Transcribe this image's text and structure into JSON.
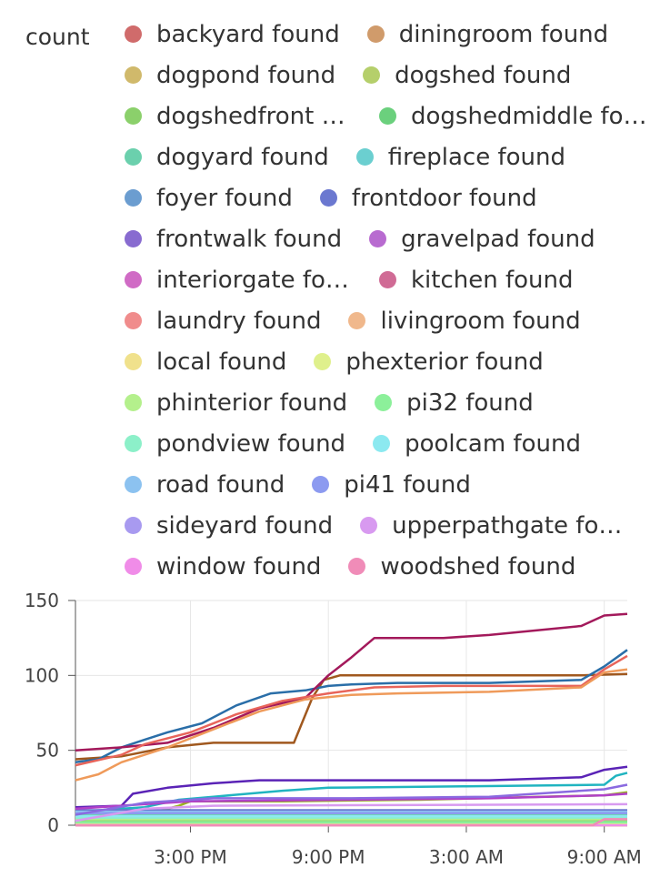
{
  "chart_data": {
    "type": "line",
    "ylabel": "count",
    "ylim": [
      0,
      150
    ],
    "yticks": [
      0,
      50,
      100,
      150
    ],
    "xticks": [
      "3:00 PM",
      "9:00 PM",
      "3:00 AM",
      "9:00 AM"
    ],
    "xlim_hours": [
      10,
      34
    ],
    "legend": "top",
    "grid": true,
    "series": [
      {
        "name": "backyard found",
        "color": "#d06b6b",
        "values": [
          [
            10,
            0
          ],
          [
            34,
            0
          ]
        ]
      },
      {
        "name": "diningroom found",
        "color": "#d09b6b",
        "values": [
          [
            10,
            44
          ],
          [
            12,
            46
          ],
          [
            14,
            52
          ],
          [
            16,
            55
          ],
          [
            18,
            55
          ],
          [
            19.5,
            55
          ],
          [
            20.3,
            85
          ],
          [
            20.8,
            97
          ],
          [
            21.5,
            100
          ],
          [
            26,
            100
          ],
          [
            32,
            100
          ],
          [
            34,
            101
          ]
        ]
      },
      {
        "name": "dogpond found",
        "color": "#d0b96b",
        "values": [
          [
            10,
            1
          ],
          [
            34,
            1
          ]
        ]
      },
      {
        "name": "dogshed found",
        "color": "#b5cf6b",
        "values": [
          [
            10,
            5
          ],
          [
            11.5,
            6
          ],
          [
            13.5,
            9
          ],
          [
            14.5,
            13
          ],
          [
            15,
            16
          ],
          [
            19,
            16
          ],
          [
            25,
            17
          ],
          [
            33,
            20
          ],
          [
            34,
            22
          ]
        ]
      },
      {
        "name": "dogshedfront found",
        "color": "#8bd06b",
        "values": [
          [
            10,
            3
          ],
          [
            34,
            3
          ]
        ]
      },
      {
        "name": "dogshedmiddle found",
        "color": "#6bd07d",
        "values": [
          [
            10,
            8
          ],
          [
            34,
            8
          ]
        ]
      },
      {
        "name": "dogyard found",
        "color": "#6bd0ad",
        "values": [
          [
            10,
            7
          ],
          [
            34,
            7
          ]
        ]
      },
      {
        "name": "fireplace found",
        "color": "#6bcfd0",
        "values": [
          [
            10,
            9
          ],
          [
            13,
            12
          ],
          [
            14.5,
            17
          ],
          [
            16,
            19
          ],
          [
            19,
            23
          ],
          [
            21,
            25
          ],
          [
            27,
            26
          ],
          [
            33,
            27
          ],
          [
            33.5,
            33
          ],
          [
            34,
            35
          ]
        ]
      },
      {
        "name": "foyer found",
        "color": "#6b9dd0",
        "values": [
          [
            10,
            42
          ],
          [
            11,
            44
          ],
          [
            12,
            52
          ],
          [
            13,
            57
          ],
          [
            14,
            62
          ],
          [
            15.5,
            68
          ],
          [
            17,
            80
          ],
          [
            18.5,
            88
          ],
          [
            20,
            90
          ],
          [
            21,
            93
          ],
          [
            22,
            94
          ],
          [
            24,
            95
          ],
          [
            28,
            95
          ],
          [
            32,
            97
          ],
          [
            33,
            106
          ],
          [
            34,
            117
          ]
        ]
      },
      {
        "name": "frontdoor found",
        "color": "#6b78d0",
        "values": [
          [
            10,
            10
          ],
          [
            34,
            10
          ]
        ]
      },
      {
        "name": "frontwalk found",
        "color": "#886bd0",
        "values": [
          [
            10,
            12
          ],
          [
            12,
            13
          ],
          [
            12.5,
            21
          ],
          [
            14,
            25
          ],
          [
            16,
            28
          ],
          [
            18,
            30
          ],
          [
            22,
            30
          ],
          [
            28,
            30
          ],
          [
            32,
            32
          ],
          [
            33,
            37
          ],
          [
            34,
            39
          ]
        ]
      },
      {
        "name": "gravelpad found",
        "color": "#b86bd0",
        "values": [
          [
            10,
            11
          ],
          [
            13,
            14
          ],
          [
            15,
            16
          ],
          [
            22,
            17
          ],
          [
            28,
            18
          ],
          [
            33,
            20
          ],
          [
            34,
            21
          ]
        ]
      },
      {
        "name": "interiorgate found",
        "color": "#d06bc5",
        "values": [
          [
            10,
            2
          ],
          [
            34,
            2
          ]
        ]
      },
      {
        "name": "kitchen found",
        "color": "#d06b95",
        "values": [
          [
            10,
            50
          ],
          [
            12,
            52
          ],
          [
            14,
            55
          ],
          [
            16,
            65
          ],
          [
            18,
            78
          ],
          [
            20,
            85
          ],
          [
            21,
            100
          ],
          [
            22,
            112
          ],
          [
            23,
            125
          ],
          [
            26,
            125
          ],
          [
            28,
            127
          ],
          [
            32,
            133
          ],
          [
            33,
            140
          ],
          [
            34,
            141
          ]
        ]
      },
      {
        "name": "laundry found",
        "color": "#f08c8c",
        "values": [
          [
            10,
            40
          ],
          [
            12,
            47
          ],
          [
            13,
            54
          ],
          [
            15,
            62
          ],
          [
            17,
            74
          ],
          [
            19,
            83
          ],
          [
            21,
            88
          ],
          [
            23,
            92
          ],
          [
            26,
            93
          ],
          [
            32,
            93
          ],
          [
            33,
            104
          ],
          [
            34,
            113
          ]
        ]
      },
      {
        "name": "livingroom found",
        "color": "#f0b88c",
        "values": [
          [
            10,
            30
          ],
          [
            11,
            34
          ],
          [
            12,
            42
          ],
          [
            14,
            52
          ],
          [
            16,
            64
          ],
          [
            18,
            76
          ],
          [
            20,
            84
          ],
          [
            22,
            87
          ],
          [
            24,
            88
          ],
          [
            28,
            89
          ],
          [
            32,
            92
          ],
          [
            33,
            102
          ],
          [
            34,
            104
          ]
        ]
      },
      {
        "name": "local found",
        "color": "#f0e18c",
        "values": [
          [
            10,
            0
          ],
          [
            34,
            0
          ]
        ]
      },
      {
        "name": "phexterior found",
        "color": "#dff08c",
        "values": [
          [
            10,
            1
          ],
          [
            34,
            1
          ]
        ]
      },
      {
        "name": "phinterior found",
        "color": "#b4f08c",
        "values": [
          [
            10,
            4
          ],
          [
            34,
            4
          ]
        ]
      },
      {
        "name": "pi32 found",
        "color": "#8cf09a",
        "values": [
          [
            10,
            2
          ],
          [
            34,
            2
          ]
        ]
      },
      {
        "name": "pondview found",
        "color": "#8cf0c9",
        "values": [
          [
            10,
            5
          ],
          [
            34,
            5
          ]
        ]
      },
      {
        "name": "poolcam found",
        "color": "#8ce9f0",
        "values": [
          [
            10,
            6
          ],
          [
            34,
            6
          ]
        ]
      },
      {
        "name": "road found",
        "color": "#8cc2f0",
        "values": [
          [
            10,
            9
          ],
          [
            34,
            9
          ]
        ]
      },
      {
        "name": "pi41 found",
        "color": "#8c9af0",
        "values": [
          [
            10,
            8
          ],
          [
            34,
            8
          ]
        ]
      },
      {
        "name": "sideyard found",
        "color": "#a89af0",
        "values": [
          [
            10,
            7
          ],
          [
            13,
            15
          ],
          [
            16,
            18
          ],
          [
            22,
            18
          ],
          [
            28,
            19
          ],
          [
            33,
            24
          ],
          [
            34,
            27
          ]
        ]
      },
      {
        "name": "upperpathgate found",
        "color": "#d89af0",
        "values": [
          [
            10,
            3
          ],
          [
            13,
            11
          ],
          [
            16,
            13
          ],
          [
            34,
            14
          ]
        ]
      },
      {
        "name": "window found",
        "color": "#f08ce8",
        "values": [
          [
            10,
            0
          ],
          [
            34,
            0
          ]
        ]
      },
      {
        "name": "woodshed found",
        "color": "#f08cb8",
        "values": [
          [
            10,
            0
          ],
          [
            32.5,
            0
          ],
          [
            33,
            4
          ],
          [
            34,
            4
          ]
        ]
      }
    ]
  }
}
